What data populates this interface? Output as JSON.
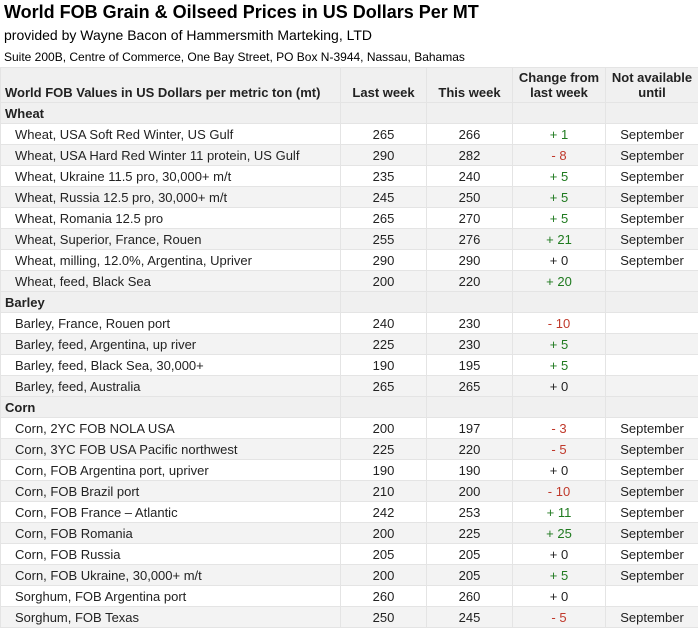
{
  "title": "World FOB Grain & Oilseed Prices in US Dollars Per MT",
  "subtitle": "provided by Wayne Bacon of Hammersmith Marteking, LTD",
  "address": "Suite 200B, Centre of Commerce, One Bay Street, PO Box N-3944, Nassau, Bahamas",
  "colors": {
    "positive": "#1f7a1f",
    "negative": "#c0392b",
    "header_bg": "#f0f0f0"
  },
  "columns": {
    "name": "World FOB Values in US Dollars per metric ton (mt)",
    "last_week": "Last week",
    "this_week": "This week",
    "change": "Change from last week",
    "not_available": "Not available until"
  },
  "sections": [
    {
      "name": "Wheat",
      "rows": [
        {
          "name": "Wheat, USA Soft Red Winter, US Gulf",
          "last": "265",
          "this": "266",
          "change": "+ 1",
          "until": "September"
        },
        {
          "name": "Wheat, USA Hard Red Winter 11 protein, US Gulf",
          "last": "290",
          "this": "282",
          "change": "- 8",
          "until": "September"
        },
        {
          "name": "Wheat, Ukraine 11.5 pro, 30,000+ m/t",
          "last": "235",
          "this": "240",
          "change": "+ 5",
          "until": "September"
        },
        {
          "name": "Wheat, Russia 12.5 pro, 30,000+ m/t",
          "last": "245",
          "this": "250",
          "change": "+ 5",
          "until": "September"
        },
        {
          "name": "Wheat, Romania 12.5 pro",
          "last": "265",
          "this": "270",
          "change": "+ 5",
          "until": "September"
        },
        {
          "name": "Wheat, Superior, France, Rouen",
          "last": "255",
          "this": "276",
          "change": "+ 21",
          "until": "September"
        },
        {
          "name": "Wheat, milling, 12.0%, Argentina, Upriver",
          "last": "290",
          "this": "290",
          "change": "+ 0",
          "until": "September"
        },
        {
          "name": "Wheat, feed, Black Sea",
          "last": "200",
          "this": "220",
          "change": "+ 20",
          "until": ""
        }
      ]
    },
    {
      "name": "Barley",
      "rows": [
        {
          "name": "Barley, France, Rouen port",
          "last": "240",
          "this": "230",
          "change": "- 10",
          "until": ""
        },
        {
          "name": "Barley, feed, Argentina, up river",
          "last": "225",
          "this": "230",
          "change": "+ 5",
          "until": ""
        },
        {
          "name": "Barley, feed, Black Sea, 30,000+",
          "last": "190",
          "this": "195",
          "change": "+ 5",
          "until": ""
        },
        {
          "name": "Barley, feed, Australia",
          "last": "265",
          "this": "265",
          "change": "+ 0",
          "until": ""
        }
      ]
    },
    {
      "name": "Corn",
      "rows": [
        {
          "name": "Corn, 2YC FOB NOLA USA",
          "last": "200",
          "this": "197",
          "change": "- 3",
          "until": "September"
        },
        {
          "name": "Corn, 3YC FOB USA Pacific northwest",
          "last": "225",
          "this": "220",
          "change": "- 5",
          "until": "September"
        },
        {
          "name": "Corn, FOB Argentina port, upriver",
          "last": "190",
          "this": "190",
          "change": "+ 0",
          "until": "September"
        },
        {
          "name": "Corn, FOB Brazil port",
          "last": "210",
          "this": "200",
          "change": "- 10",
          "until": "September"
        },
        {
          "name": "Corn, FOB France – Atlantic",
          "last": "242",
          "this": "253",
          "change": "+ 11",
          "until": "September"
        },
        {
          "name": "Corn, FOB Romania",
          "last": "200",
          "this": "225",
          "change": "+ 25",
          "until": "September"
        },
        {
          "name": "Corn, FOB Russia",
          "last": "205",
          "this": "205",
          "change": "+ 0",
          "until": "September"
        },
        {
          "name": "Corn, FOB Ukraine, 30,000+ m/t",
          "last": "200",
          "this": "205",
          "change": "+ 5",
          "until": "September"
        },
        {
          "name": "Sorghum, FOB Argentina port",
          "last": "260",
          "this": "260",
          "change": "+ 0",
          "until": ""
        },
        {
          "name": "Sorghum, FOB Texas",
          "last": "250",
          "this": "245",
          "change": "- 5",
          "until": "September"
        }
      ]
    }
  ]
}
